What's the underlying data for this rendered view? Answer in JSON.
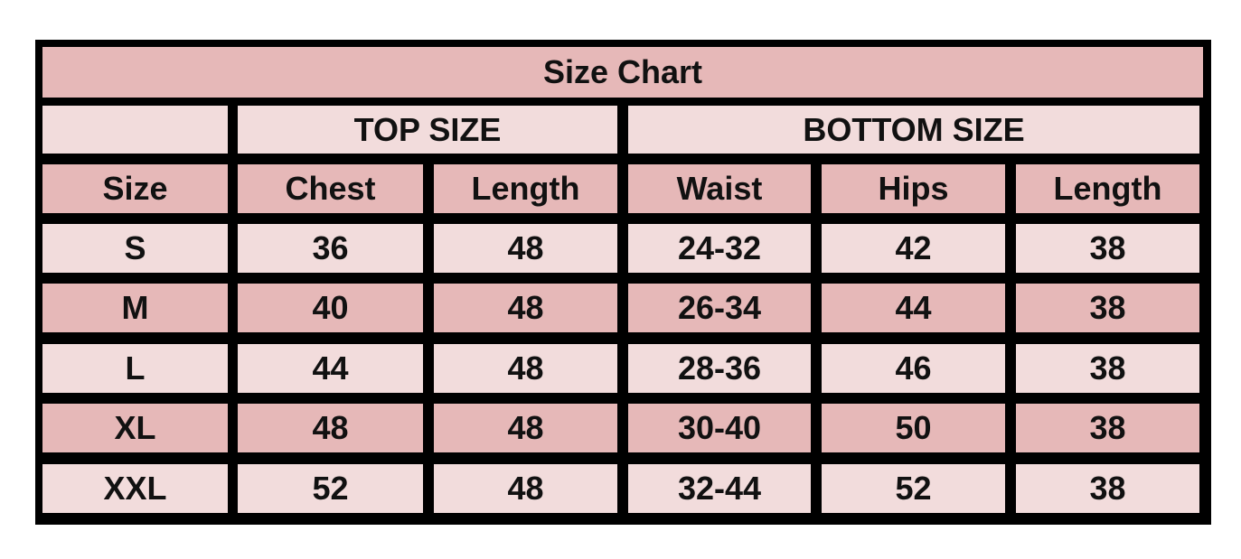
{
  "title": "Size Chart",
  "groups": {
    "top": "TOP SIZE",
    "bottom": "BOTTOM SIZE"
  },
  "headers": [
    "Size",
    "Chest",
    "Length",
    "Waist",
    "Hips",
    "Length"
  ],
  "rows": [
    [
      "S",
      "36",
      "48",
      "24-32",
      "42",
      "38"
    ],
    [
      "M",
      "40",
      "48",
      "26-34",
      "44",
      "38"
    ],
    [
      "L",
      "44",
      "48",
      "28-36",
      "46",
      "38"
    ],
    [
      "XL",
      "48",
      "48",
      "30-40",
      "50",
      "38"
    ],
    [
      "XXL",
      "52",
      "48",
      "32-44",
      "52",
      "38"
    ]
  ],
  "colors": {
    "dark_pink": "#e6b8b8",
    "light_pink": "#f2dcdc",
    "border": "#000000"
  }
}
